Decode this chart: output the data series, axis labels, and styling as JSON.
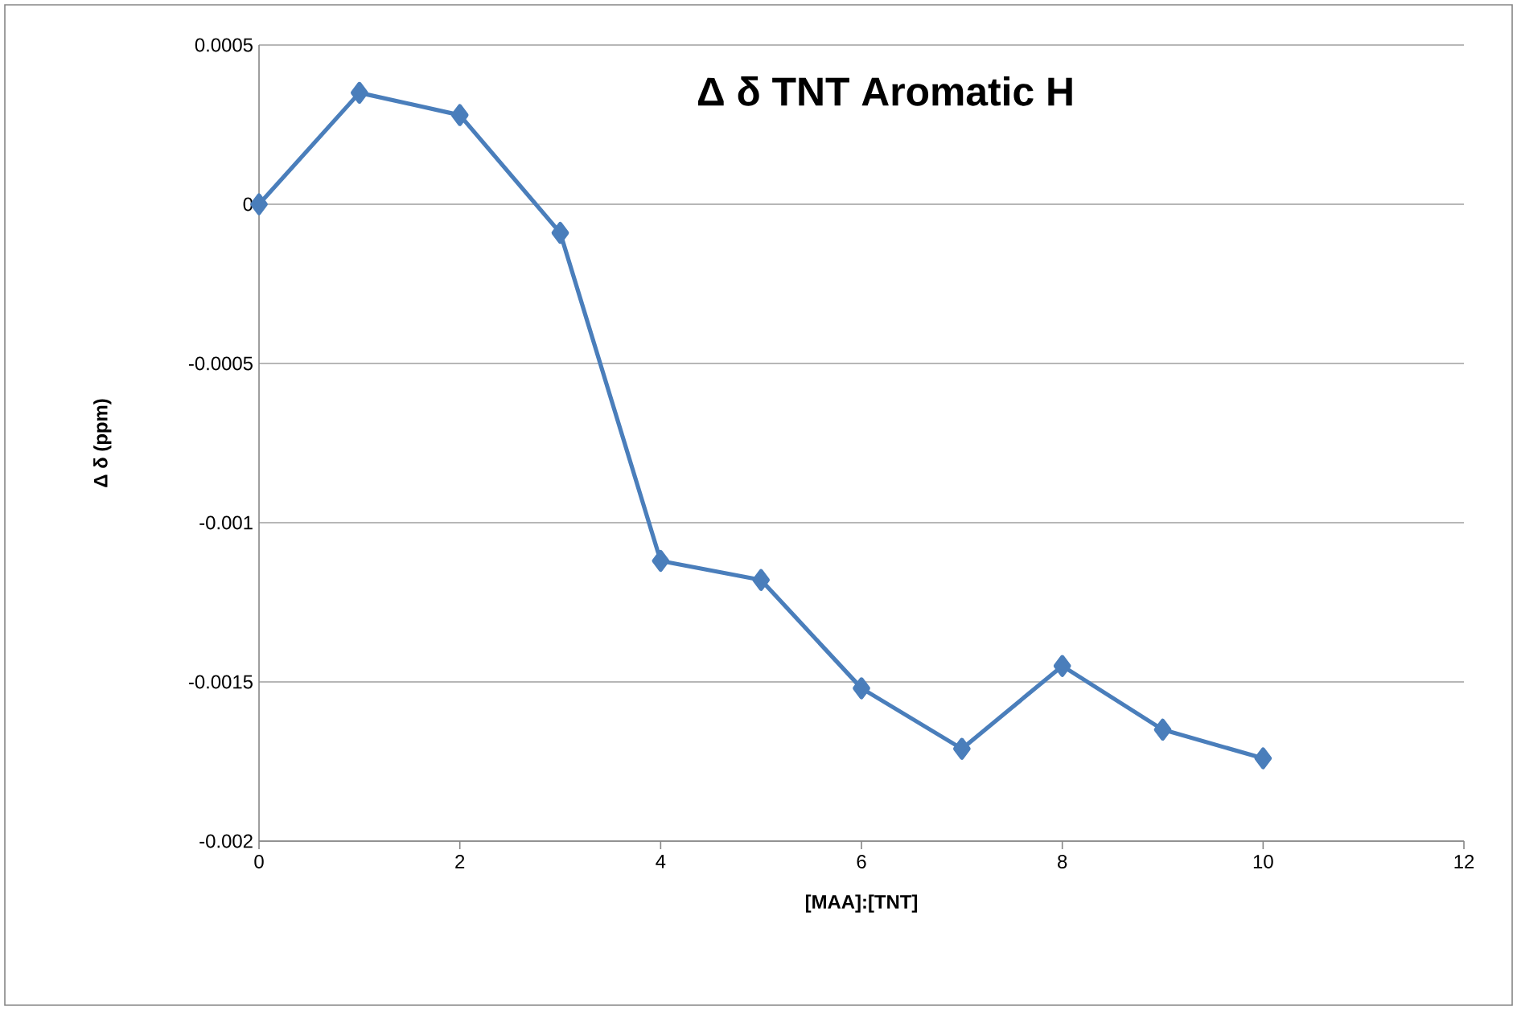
{
  "chart_data": {
    "type": "line",
    "title": "Δ δ TNT Aromatic H",
    "xlabel": "[MAA]:[TNT]",
    "ylabel": "Δ δ (ppm)",
    "x": [
      0,
      1,
      2,
      3,
      4,
      5,
      6,
      7,
      8,
      9,
      10
    ],
    "series": [
      {
        "color": "#4a7ebb",
        "values": [
          0,
          0.00035,
          0.00028,
          -9e-05,
          -0.00112,
          -0.00118,
          -0.00152,
          -0.00171,
          -0.00145,
          -0.00165,
          -0.00174
        ]
      }
    ],
    "xlim": [
      0,
      12
    ],
    "xticks": [
      0,
      2,
      4,
      6,
      8,
      10,
      12
    ],
    "ylim": [
      -0.002,
      0.0005
    ],
    "yticks": [
      -0.002,
      -0.0015,
      -0.001,
      -0.0005,
      0,
      0.0005
    ],
    "grid": "y",
    "marker": "diamond",
    "line_style": "solid"
  }
}
